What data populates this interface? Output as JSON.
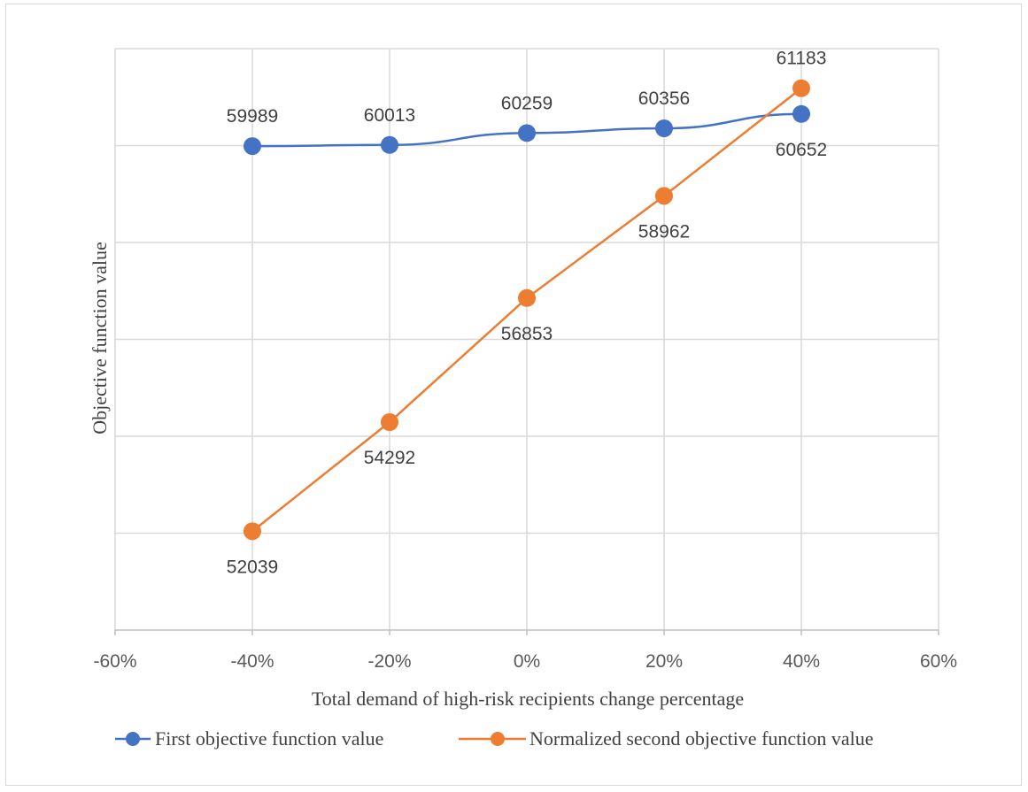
{
  "chart_data": {
    "type": "line",
    "title": "",
    "xlabel": "Total demand of high-risk recipients change percentage",
    "ylabel": "Objective function value",
    "x_ticks": [
      "-60%",
      "-40%",
      "-20%",
      "0%",
      "20%",
      "40%",
      "60%"
    ],
    "xlim": [
      -60,
      60
    ],
    "ylim": [
      50000,
      62000
    ],
    "y_gridlines": [
      52000,
      54000,
      56000,
      58000,
      60000,
      62000
    ],
    "y_tick_labels_visible": false,
    "grid": true,
    "legend_position": "bottom",
    "series": [
      {
        "name": "First objective function value",
        "color": "#4472C4",
        "x": [
          -40,
          -20,
          0,
          20,
          40
        ],
        "values": [
          59989,
          60013,
          60259,
          60356,
          60652
        ],
        "labels": [
          "59989",
          "60013",
          "60259",
          "60356",
          "60652"
        ],
        "label_position": [
          "above",
          "above",
          "above",
          "above",
          "below"
        ]
      },
      {
        "name": "Normalized second objective function value",
        "color": "#ED7D31",
        "x": [
          -40,
          -20,
          0,
          20,
          40
        ],
        "values": [
          52039,
          54292,
          56853,
          58962,
          61183
        ],
        "labels": [
          "52039",
          "54292",
          "56853",
          "58962",
          "61183"
        ],
        "label_position": [
          "below",
          "below",
          "below",
          "below",
          "above"
        ]
      }
    ]
  }
}
